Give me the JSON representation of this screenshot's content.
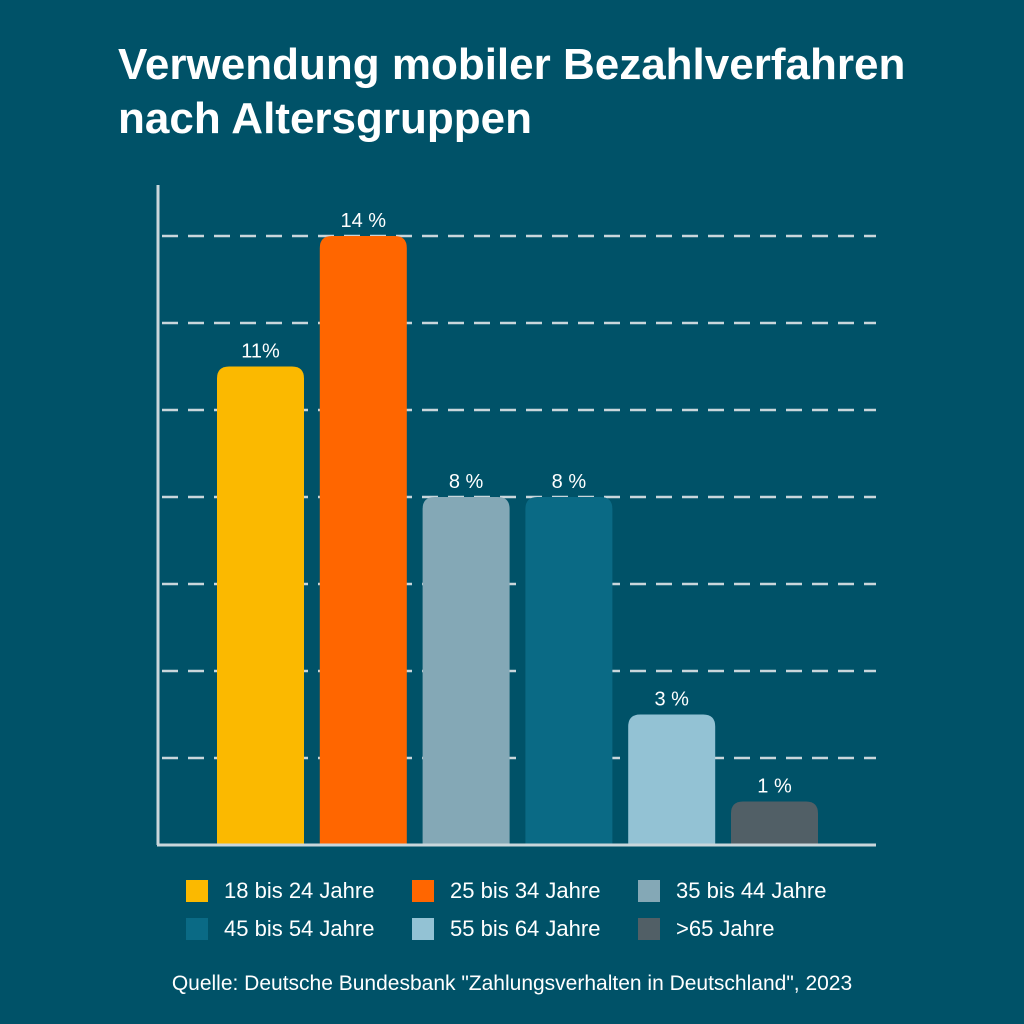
{
  "title_line1": "Verwendung mobiler Bezahlverfahren",
  "title_line2": "nach Altersgruppen",
  "source": "Quelle: Deutsche Bundesbank \"Zahlungsverhalten in Deutschland\", 2023",
  "chart_data": {
    "type": "bar",
    "title": "Verwendung mobiler Bezahlverfahren nach Altersgruppen",
    "categories": [
      "18 bis 24 Jahre",
      "25 bis 34 Jahre",
      "35 bis 44 Jahre",
      "45 bis 54 Jahre",
      "55 bis 64 Jahre",
      ">65 Jahre"
    ],
    "values": [
      11,
      14,
      8,
      8,
      3,
      1
    ],
    "value_labels": [
      "11%",
      "14 %",
      "8  %",
      "8  %",
      "3 %",
      "1 %"
    ],
    "colors": [
      "#fbb900",
      "#ff6600",
      "#84a8b6",
      "#0a6a85",
      "#93c2d4",
      "#515f66"
    ],
    "ylim": [
      0,
      16
    ],
    "grid": true,
    "grid_style": "dashed",
    "legend_position": "bottom",
    "xlabel": "",
    "ylabel": ""
  }
}
